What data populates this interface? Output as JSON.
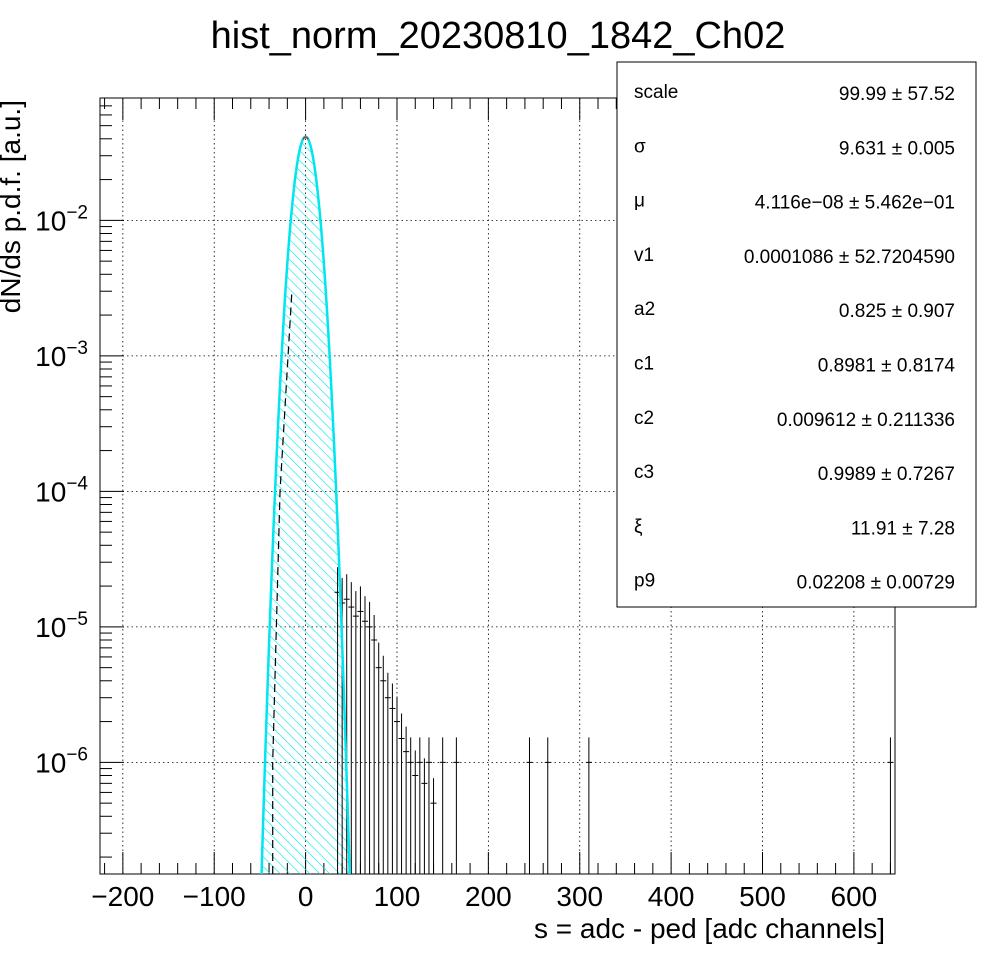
{
  "chart_data": {
    "type": "histogram",
    "title": "hist_norm_20230810_1842_Ch02",
    "xlabel": "s = adc - ped [adc channels]",
    "ylabel": "dN/ds p.d.f. [a.u.]",
    "xlim": [
      -225,
      645
    ],
    "ylim": [
      1.5e-07,
      0.08
    ],
    "yscale": "log",
    "grid": true,
    "x_ticks": [
      -200,
      -100,
      0,
      100,
      200,
      300,
      400,
      500,
      600
    ],
    "x_tick_labels": [
      "−200",
      "−100",
      "0",
      "100",
      "200",
      "300",
      "400",
      "500",
      "600"
    ],
    "y_ticks": [
      {
        "value": 0.01,
        "base": "10",
        "exp": "−2"
      },
      {
        "value": 0.001,
        "base": "10",
        "exp": "−3"
      },
      {
        "value": 0.0001,
        "base": "10",
        "exp": "−4"
      },
      {
        "value": 1e-05,
        "base": "10",
        "exp": "−5"
      },
      {
        "value": 1e-06,
        "base": "10",
        "exp": "−6"
      }
    ],
    "colors": {
      "histogram": "#000000",
      "fit": "#00e5ee",
      "fill_hatch": "#00e5ee",
      "fit_peak": "#ff0000"
    },
    "gaussian_fit": {
      "mu": 0.0,
      "sigma": 9.631,
      "peak": 0.0415
    },
    "tail": [
      {
        "x": 35,
        "y": 1.8e-05
      },
      {
        "x": 40,
        "y": 1.5e-05
      },
      {
        "x": 45,
        "y": 1.6e-05
      },
      {
        "x": 50,
        "y": 1.4e-05
      },
      {
        "x": 55,
        "y": 1.2e-05
      },
      {
        "x": 60,
        "y": 1.3e-05
      },
      {
        "x": 65,
        "y": 1.1e-05
      },
      {
        "x": 70,
        "y": 1e-05
      },
      {
        "x": 75,
        "y": 8e-06
      },
      {
        "x": 80,
        "y": 5e-06
      },
      {
        "x": 85,
        "y": 4e-06
      },
      {
        "x": 90,
        "y": 3e-06
      },
      {
        "x": 95,
        "y": 2.5e-06
      },
      {
        "x": 100,
        "y": 2e-06
      },
      {
        "x": 105,
        "y": 1.5e-06
      },
      {
        "x": 110,
        "y": 1.2e-06
      },
      {
        "x": 115,
        "y": 1e-06
      },
      {
        "x": 120,
        "y": 8e-07
      },
      {
        "x": 125,
        "y": 1e-06
      },
      {
        "x": 130,
        "y": 7e-07
      },
      {
        "x": 135,
        "y": 1e-06
      },
      {
        "x": 140,
        "y": 5e-07
      },
      {
        "x": 150,
        "y": 1e-06
      },
      {
        "x": 165,
        "y": 1e-06
      },
      {
        "x": 245,
        "y": 1e-06
      },
      {
        "x": 265,
        "y": 1e-06
      },
      {
        "x": 310,
        "y": 1e-06
      },
      {
        "x": 640,
        "y": 1e-06
      }
    ],
    "stats_box": {
      "rows": [
        {
          "label": "scale",
          "value": "99.99 ± 57.52"
        },
        {
          "label": "σ",
          "value": "9.631 ± 0.005"
        },
        {
          "label": "μ",
          "value": "4.116e−08 ± 5.462e−01"
        },
        {
          "label": "v1",
          "value": "0.0001086  ± 52.7204590"
        },
        {
          "label": "a2",
          "value": "0.825  ± 0.907"
        },
        {
          "label": "c1",
          "value": "0.8981 ± 0.8174"
        },
        {
          "label": "c2",
          "value": "0.009612  ± 0.211336"
        },
        {
          "label": "c3",
          "value": "0.9989  ± 0.7267"
        },
        {
          "label": "ξ",
          "value": "11.91 ± 7.28"
        },
        {
          "label": "p9",
          "value": "0.02208  ± 0.00729"
        }
      ]
    }
  }
}
